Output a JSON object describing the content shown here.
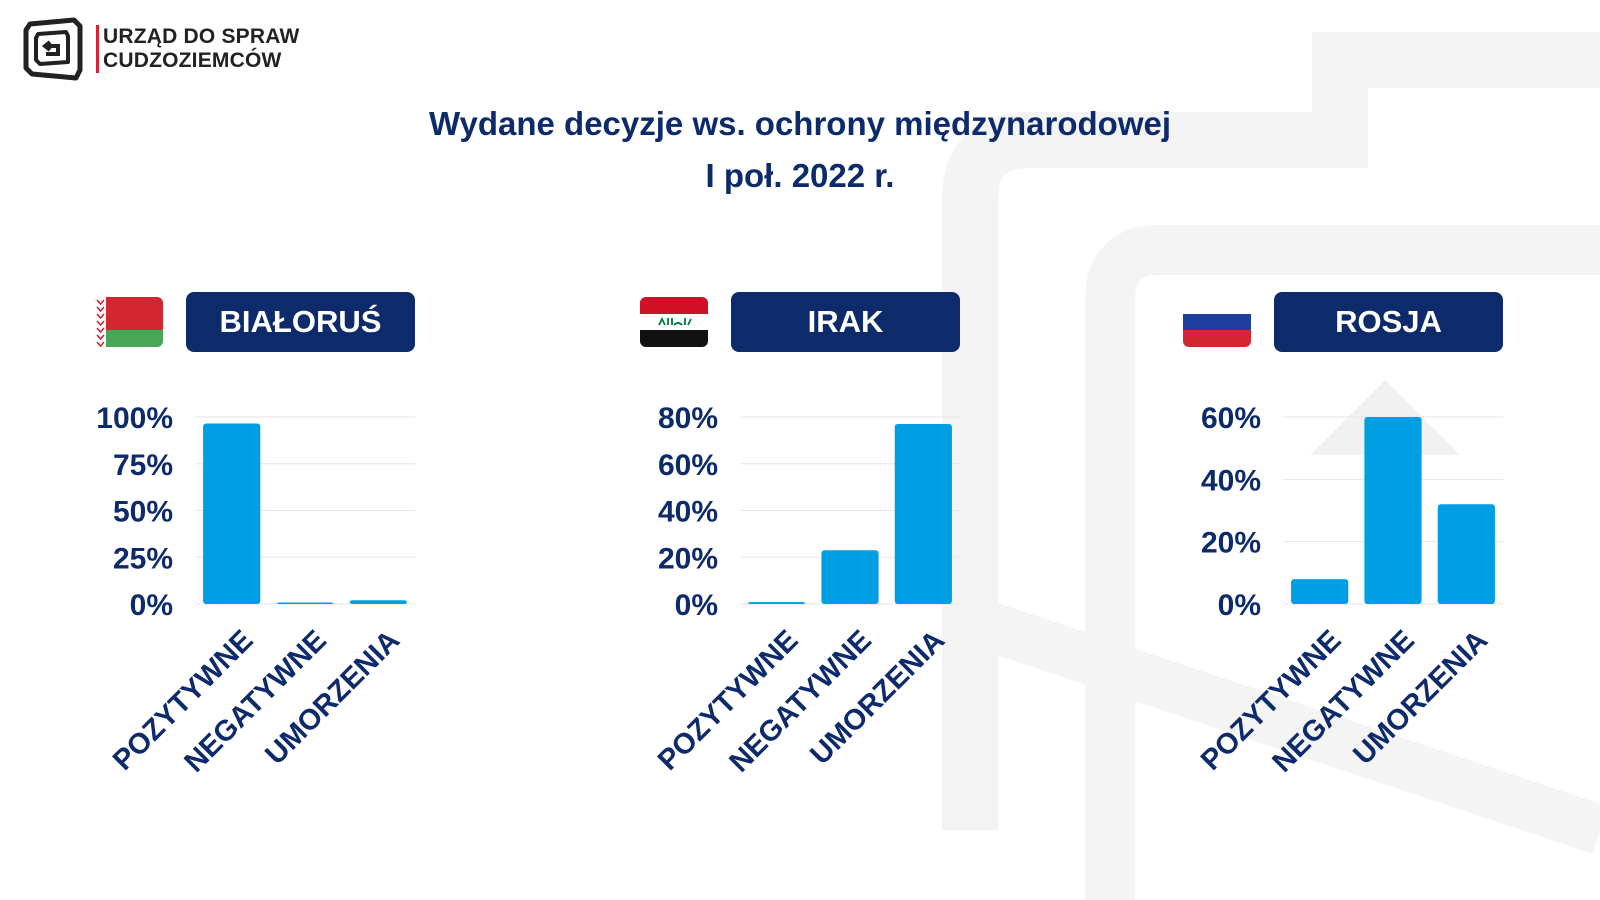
{
  "header": {
    "org_line1": "URZĄD DO SPRAW",
    "org_line2": "CUDZOZIEMCÓW",
    "title_line1": "Wydane decyzje ws. ochrony międzynarodowej",
    "title_line2": "I poł. 2022 r."
  },
  "colors": {
    "navy": "#0d2a6b",
    "bar": "#009fe3",
    "accent_red": "#d92332",
    "grid": "#e6e6e6"
  },
  "chart_data": [
    {
      "type": "bar",
      "country": "BIAŁORUŚ",
      "flag": "belarus-flag",
      "categories": [
        "POZYTYWNE",
        "NEGATYWNE",
        "UMORZENIA"
      ],
      "values": [
        96.5,
        0.8,
        2.0
      ],
      "ylim": [
        0,
        100
      ],
      "yticks": [
        0,
        25,
        50,
        75,
        100
      ],
      "ytick_labels": [
        "0%",
        "25%",
        "50%",
        "75%",
        "100%"
      ],
      "grid": true
    },
    {
      "type": "bar",
      "country": "IRAK",
      "flag": "iraq-flag",
      "categories": [
        "POZYTYWNE",
        "NEGATYWNE",
        "UMORZENIA"
      ],
      "values": [
        0.8,
        23.0,
        77.0
      ],
      "ylim": [
        0,
        80
      ],
      "yticks": [
        0,
        20,
        40,
        60,
        80
      ],
      "ytick_labels": [
        "0%",
        "20%",
        "40%",
        "60%",
        "80%"
      ],
      "grid": true
    },
    {
      "type": "bar",
      "country": "ROSJA",
      "flag": "russia-flag",
      "categories": [
        "POZYTYWNE",
        "NEGATYWNE",
        "UMORZENIA"
      ],
      "values": [
        8.0,
        60.0,
        32.0
      ],
      "ylim": [
        0,
        60
      ],
      "yticks": [
        0,
        20,
        40,
        60
      ],
      "ytick_labels": [
        "0%",
        "20%",
        "40%",
        "60%"
      ],
      "grid": true
    }
  ]
}
